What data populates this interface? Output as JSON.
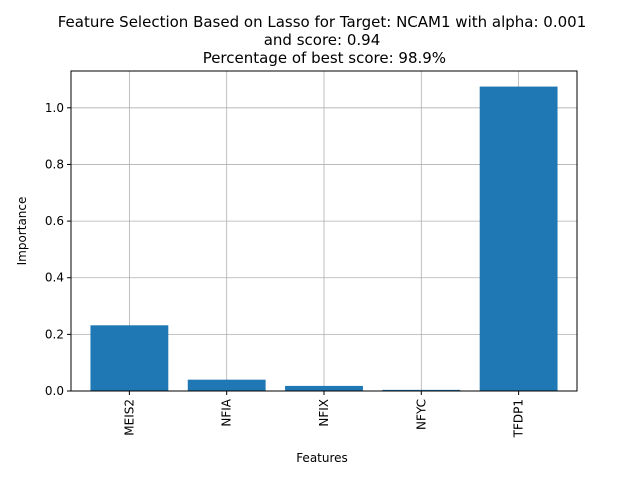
{
  "chart_data": {
    "type": "bar",
    "title_lines": [
      "Feature Selection Based on Lasso for Target: NCAM1 with alpha: 0.001",
      "and score: 0.94",
      " Percentage of best score: 98.9%"
    ],
    "categories": [
      "MEIS2",
      "NFIA",
      "NFIX",
      "NFYC",
      "TFDP1"
    ],
    "values": [
      0.232,
      0.04,
      0.018,
      0.004,
      1.075
    ],
    "xlabel": "Features",
    "ylabel": "Importance",
    "ylim": [
      0,
      1.13
    ],
    "yticks": [
      "0.0",
      "0.2",
      "0.4",
      "0.6",
      "0.8",
      "1.0"
    ],
    "grid": true,
    "bar_color": "#1f77b4"
  }
}
